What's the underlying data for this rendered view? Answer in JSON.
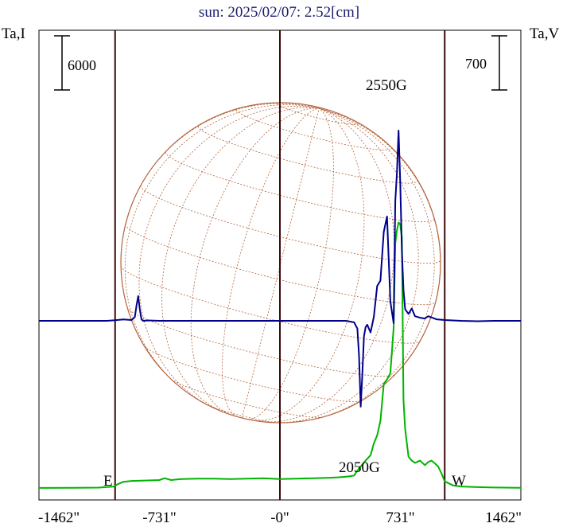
{
  "chart_data": {
    "type": "line",
    "title": "sun: 2025/02/07: 2.52[cm]",
    "left_axis_label": "Ta,I",
    "right_axis_label": "Ta,V",
    "x_ticks": [
      "-1462\"",
      "-731\"",
      "-0\"",
      "731\"",
      "1462\""
    ],
    "x_tick_values": [
      -1462,
      -731,
      0,
      731,
      1462
    ],
    "xlim": [
      -1462,
      1462
    ],
    "scale_bar_left": "6000",
    "scale_bar_right": "700",
    "limb_labels": {
      "east": "E",
      "west": "W"
    },
    "annotations": [
      {
        "text": "2550G",
        "x": 740,
        "series": "I"
      },
      {
        "text": "2050G",
        "x": 490,
        "series": "V"
      }
    ],
    "vertical_markers_x": [
      -1000,
      0,
      1000
    ],
    "grid": false,
    "colors": {
      "intensity": "#00b400",
      "polarization": "#00008b",
      "disk": "#b4643c",
      "markers": "#3c0a0a",
      "frame": "#000000"
    },
    "series": [
      {
        "name": "I",
        "axis": "left",
        "x": [
          -1462,
          -1250,
          -1100,
          -1010,
          -980,
          -950,
          -900,
          -800,
          -731,
          -700,
          -660,
          -600,
          -500,
          -400,
          -300,
          -200,
          -100,
          0,
          100,
          200,
          300,
          350,
          390,
          420,
          450,
          470,
          490,
          510,
          530,
          550,
          570,
          590,
          610,
          630,
          650,
          670,
          690,
          700,
          710,
          720,
          730,
          740,
          750,
          760,
          780,
          800,
          820,
          850,
          880,
          900,
          920,
          940,
          960,
          980,
          1000,
          1050,
          1100,
          1200,
          1300,
          1400,
          1462
        ],
        "values": [
          270,
          280,
          310,
          420,
          720,
          950,
          1050,
          1100,
          1150,
          1350,
          1150,
          1250,
          1300,
          1300,
          1250,
          1300,
          1350,
          1250,
          1300,
          1350,
          1400,
          1450,
          1500,
          1550,
          1650,
          2200,
          2650,
          3100,
          3500,
          3900,
          5200,
          6100,
          7700,
          11800,
          12300,
          13000,
          18000,
          27400,
          28800,
          29700,
          29500,
          28000,
          10000,
          6800,
          3750,
          3300,
          3050,
          3300,
          2800,
          3150,
          3300,
          3000,
          2650,
          1900,
          1000,
          560,
          430,
          360,
          320,
          300,
          280
        ]
      },
      {
        "name": "V",
        "axis": "right",
        "x": [
          -1462,
          -1200,
          -1050,
          -1000,
          -950,
          -900,
          -880,
          -870,
          -860,
          -850,
          -840,
          -830,
          -800,
          -731,
          -600,
          -400,
          -200,
          0,
          200,
          400,
          450,
          470,
          480,
          490,
          500,
          510,
          520,
          530,
          550,
          570,
          590,
          610,
          630,
          650,
          670,
          690,
          700,
          710,
          720,
          730,
          740,
          750,
          760,
          780,
          800,
          820,
          850,
          880,
          900,
          950,
          1000,
          1100,
          1200,
          1300,
          1462
        ],
        "values": [
          0,
          0,
          0,
          8,
          18,
          10,
          50,
          200,
          320,
          150,
          20,
          0,
          5,
          0,
          0,
          0,
          0,
          0,
          0,
          0,
          -20,
          -100,
          -450,
          -1110,
          -700,
          -200,
          -80,
          -50,
          -150,
          50,
          450,
          520,
          1150,
          1350,
          250,
          -30,
          1550,
          1900,
          2460,
          1800,
          900,
          400,
          150,
          90,
          160,
          60,
          40,
          30,
          60,
          20,
          10,
          0,
          -5,
          0,
          0
        ]
      }
    ]
  }
}
